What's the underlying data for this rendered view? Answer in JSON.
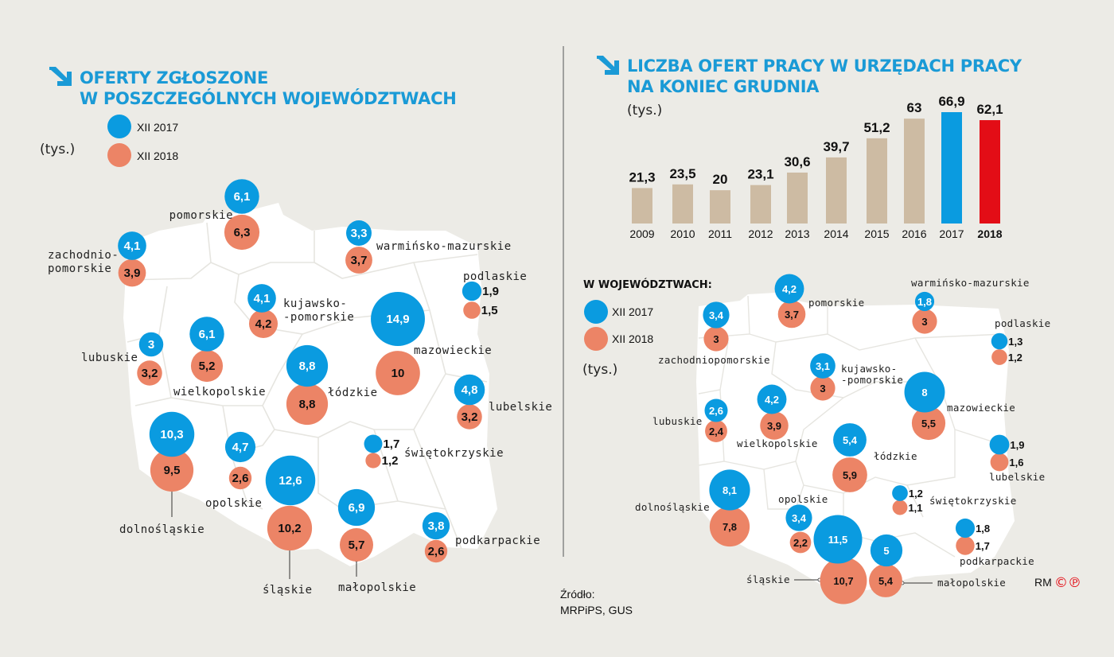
{
  "colors": {
    "y2017": "#0a9be0",
    "y2018": "#ec8466",
    "bar_past": "#cdbba3",
    "bar_2017": "#0a9be0",
    "bar_2018": "#e30d16",
    "title": "#1a9ad6",
    "map": "#ffffff"
  },
  "left_panel": {
    "title_line1": "OFERTY ZGŁOSZONE",
    "title_line2": "W POSZCZEGÓLNYCH WOJEWÓDZTWACH",
    "legend_2017": "XII 2017",
    "legend_2018": "XII 2018",
    "unit": "(tys.)",
    "icon": "arrow-down-right-icon"
  },
  "right_panel": {
    "title_line1": "LICZBA OFERT PRACY W URZĘDACH PRACY",
    "title_line2": "NA KONIEC GRUDNIA",
    "unit": "(tys.)",
    "subtitle": "W WOJEWÓDZTWACH:",
    "legend_2017": "XII 2017",
    "legend_2018": "XII 2018",
    "unit2": "(tys.)",
    "icon": "arrow-down-right-icon"
  },
  "source": {
    "label": "Źródło:",
    "text": "MRPiPS, GUS"
  },
  "credit": {
    "initials": "RM",
    "marks": "©℗"
  },
  "chart_data": [
    {
      "type": "bar",
      "title": "LICZBA OFERT PRACY W URZĘDACH PRACY NA KONIEC GRUDNIA",
      "ylabel": "(tys.)",
      "categories": [
        "2009",
        "2010",
        "2011",
        "2012",
        "2013",
        "2014",
        "2015",
        "2016",
        "2017",
        "2018"
      ],
      "values": [
        21.3,
        23.5,
        20,
        23.1,
        30.6,
        39.7,
        51.2,
        63,
        66.9,
        62.1
      ],
      "labels": [
        "21,3",
        "23,5",
        "20",
        "23,1",
        "30,6",
        "39,7",
        "51,2",
        "63",
        "66,9",
        "62,1"
      ],
      "ylim": [
        0,
        70
      ],
      "grid": false
    },
    {
      "type": "bubble-map",
      "title": "OFERTY ZGŁOSZONE W POSZCZEGÓLNYCH WOJEWÓDZTWACH",
      "unit": "(tys.)",
      "series": [
        "XII 2017",
        "XII 2018"
      ],
      "regions": [
        {
          "name": "pomorskie",
          "v2017": "6,1",
          "v2018": "6,3"
        },
        {
          "name": "zachodnio-\npomorskie",
          "v2017": "4,1",
          "v2018": "3,9"
        },
        {
          "name": "warmińsko-mazurskie",
          "v2017": "3,3",
          "v2018": "3,7"
        },
        {
          "name": "podlaskie",
          "v2017": "1,9",
          "v2018": "1,5"
        },
        {
          "name": "kujawsko-\n-pomorskie",
          "v2017": "4,1",
          "v2018": "4,2"
        },
        {
          "name": "mazowieckie",
          "v2017": "14,9",
          "v2018": "10"
        },
        {
          "name": "lubuskie",
          "v2017": "3",
          "v2018": "3,2"
        },
        {
          "name": "wielkopolskie",
          "v2017": "6,1",
          "v2018": "5,2"
        },
        {
          "name": "łódzkie",
          "v2017": "8,8",
          "v2018": "8,8"
        },
        {
          "name": "lubelskie",
          "v2017": "4,8",
          "v2018": "3,2"
        },
        {
          "name": "dolnośląskie",
          "v2017": "10,3",
          "v2018": "9,5"
        },
        {
          "name": "opolskie",
          "v2017": "4,7",
          "v2018": "2,6"
        },
        {
          "name": "śląskie",
          "v2017": "12,6",
          "v2018": "10,2"
        },
        {
          "name": "małopolskie",
          "v2017": "6,9",
          "v2018": "5,7"
        },
        {
          "name": "świętokrzyskie",
          "v2017": "1,7",
          "v2018": "1,2"
        },
        {
          "name": "podkarpackie",
          "v2017": "3,8",
          "v2018": "2,6"
        }
      ]
    },
    {
      "type": "bubble-map",
      "title": "W WOJEWÓDZTWACH:",
      "unit": "(tys.)",
      "series": [
        "XII 2017",
        "XII 2018"
      ],
      "regions": [
        {
          "name": "pomorskie",
          "v2017": "4,2",
          "v2018": "3,7"
        },
        {
          "name": "zachodniopomorskie",
          "v2017": "3,4",
          "v2018": "3"
        },
        {
          "name": "warmińsko-mazurskie",
          "v2017": "1,8",
          "v2018": "3"
        },
        {
          "name": "podlaskie",
          "v2017": "1,3",
          "v2018": "1,2"
        },
        {
          "name": "kujawsko-\n-pomorskie",
          "v2017": "3,1",
          "v2018": "3"
        },
        {
          "name": "mazowieckie",
          "v2017": "8",
          "v2018": "5,5"
        },
        {
          "name": "lubuskie",
          "v2017": "2,6",
          "v2018": "2,4"
        },
        {
          "name": "wielkopolskie",
          "v2017": "4,2",
          "v2018": "3,9"
        },
        {
          "name": "łódzkie",
          "v2017": "5,4",
          "v2018": "5,9"
        },
        {
          "name": "lubelskie",
          "v2017": "1,9",
          "v2018": "1,6"
        },
        {
          "name": "dolnośląskie",
          "v2017": "8,1",
          "v2018": "7,8"
        },
        {
          "name": "opolskie",
          "v2017": "3,4",
          "v2018": "2,2"
        },
        {
          "name": "śląskie",
          "v2017": "11,5",
          "v2018": "10,7"
        },
        {
          "name": "małopolskie",
          "v2017": "5",
          "v2018": "5,4"
        },
        {
          "name": "świętokrzyskie",
          "v2017": "1,2",
          "v2018": "1,1"
        },
        {
          "name": "podkarpackie",
          "v2017": "1,8",
          "v2018": "1,7"
        }
      ]
    }
  ]
}
